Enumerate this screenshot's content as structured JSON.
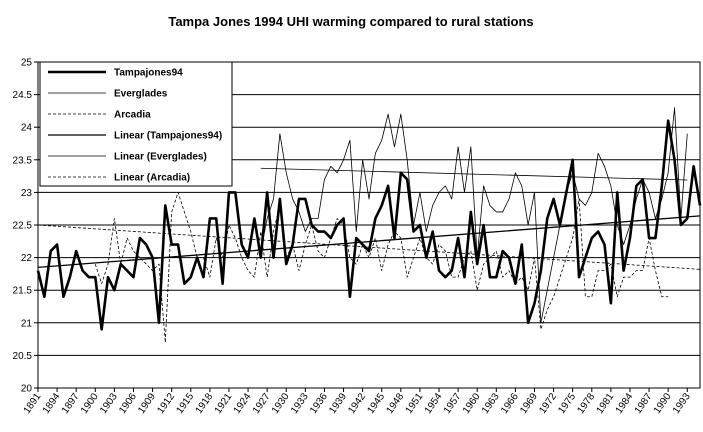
{
  "chart_data": {
    "type": "line",
    "title": "Tampa Jones 1994  UHI warming compared to rural stations",
    "xlabel": "",
    "ylabel": "",
    "ylim": [
      20,
      25
    ],
    "yticks": [
      "20",
      "20.5",
      "21",
      "21.5",
      "22",
      "22.5",
      "23",
      "23.5",
      "24",
      "24.5",
      "25"
    ],
    "xlim": [
      1891,
      1995
    ],
    "xticks": [
      "1891",
      "1894",
      "1897",
      "1900",
      "1903",
      "1906",
      "1909",
      "1912",
      "1915",
      "1918",
      "1921",
      "1924",
      "1927",
      "1930",
      "1933",
      "1936",
      "1939",
      "1942",
      "1945",
      "1948",
      "1951",
      "1954",
      "1957",
      "1960",
      "1963",
      "1966",
      "1969",
      "1972",
      "1975",
      "1978",
      "1981",
      "1984",
      "1987",
      "1990",
      "1993"
    ],
    "grid": "horizontal",
    "legend_position": "top-left",
    "legend": [
      "Tampajones94",
      "Everglades",
      "Arcadia",
      "Linear (Tampajones94)",
      "Linear (Everglades)",
      "Linear (Arcadia)"
    ],
    "series": [
      {
        "name": "Tampajones94",
        "style": "thick-solid",
        "x": [
          1891,
          1892,
          1893,
          1894,
          1895,
          1896,
          1897,
          1898,
          1899,
          1900,
          1901,
          1902,
          1903,
          1904,
          1905,
          1906,
          1907,
          1908,
          1909,
          1910,
          1911,
          1912,
          1913,
          1914,
          1915,
          1916,
          1917,
          1918,
          1919,
          1920,
          1921,
          1922,
          1923,
          1924,
          1925,
          1926,
          1927,
          1928,
          1929,
          1930,
          1931,
          1932,
          1933,
          1934,
          1935,
          1936,
          1937,
          1938,
          1939,
          1940,
          1941,
          1942,
          1943,
          1944,
          1945,
          1946,
          1947,
          1948,
          1949,
          1950,
          1951,
          1952,
          1953,
          1954,
          1955,
          1956,
          1957,
          1958,
          1959,
          1960,
          1961,
          1962,
          1963,
          1964,
          1965,
          1966,
          1967,
          1968,
          1969,
          1970,
          1971,
          1972,
          1973,
          1974,
          1975,
          1976,
          1977,
          1978,
          1979,
          1980,
          1981,
          1982,
          1983,
          1984,
          1985,
          1986,
          1987,
          1988,
          1989,
          1990,
          1991,
          1992,
          1993,
          1994,
          1995
        ],
        "values": [
          21.8,
          21.4,
          22.1,
          22.2,
          21.4,
          21.7,
          22.1,
          21.8,
          21.7,
          21.7,
          20.9,
          21.7,
          21.5,
          21.9,
          21.8,
          21.7,
          22.3,
          22.2,
          22.0,
          21.0,
          22.8,
          22.2,
          22.2,
          21.6,
          21.7,
          22.0,
          21.7,
          22.6,
          22.6,
          21.6,
          23.0,
          23.0,
          22.2,
          22.0,
          22.6,
          22.0,
          23.0,
          22.0,
          22.9,
          21.9,
          22.2,
          22.9,
          22.9,
          22.5,
          22.4,
          22.4,
          22.3,
          22.5,
          22.6,
          21.4,
          22.3,
          22.2,
          22.1,
          22.6,
          22.8,
          23.1,
          22.3,
          23.3,
          23.2,
          22.4,
          22.5,
          22.0,
          22.4,
          21.8,
          21.7,
          21.8,
          22.3,
          21.7,
          22.7,
          21.9,
          22.5,
          21.7,
          21.7,
          22.1,
          22.0,
          21.6,
          22.2,
          21.0,
          21.3,
          21.8,
          22.6,
          22.9,
          22.5,
          23.0,
          23.5,
          21.7,
          22.0,
          22.3,
          22.4,
          22.2,
          21.3,
          23.0,
          21.8,
          22.3,
          23.1,
          23.2,
          22.3,
          22.3,
          23.1,
          24.1,
          23.5,
          22.5,
          22.6,
          23.4,
          22.8
        ]
      },
      {
        "name": "Everglades",
        "style": "thin-solid",
        "x": [
          1926,
          1927,
          1928,
          1929,
          1930,
          1931,
          1932,
          1933,
          1934,
          1935,
          1936,
          1937,
          1938,
          1939,
          1940,
          1941,
          1942,
          1943,
          1944,
          1945,
          1946,
          1947,
          1948,
          1949,
          1950,
          1951,
          1952,
          1953,
          1954,
          1955,
          1956,
          1957,
          1958,
          1959,
          1960,
          1961,
          1962,
          1963,
          1964,
          1965,
          1966,
          1967,
          1968,
          1969,
          1970,
          1971,
          1972,
          1973,
          1974,
          1975,
          1976,
          1977,
          1978,
          1979,
          1980,
          1981,
          1982,
          1983,
          1984,
          1985,
          1986,
          1987,
          1988,
          1989,
          1990,
          1991,
          1992,
          1993
        ],
        "values": [
          22.1,
          22.6,
          22.9,
          23.9,
          23.3,
          22.9,
          22.7,
          22.4,
          22.6,
          22.6,
          23.2,
          23.4,
          23.3,
          23.5,
          23.8,
          22.4,
          23.5,
          22.9,
          23.6,
          23.8,
          24.2,
          23.7,
          24.2,
          23.5,
          22.5,
          23.0,
          22.4,
          22.8,
          23.0,
          23.1,
          22.9,
          23.7,
          23.0,
          23.7,
          22.0,
          23.1,
          22.8,
          22.7,
          22.7,
          22.9,
          23.3,
          23.1,
          22.5,
          23.0,
          21.0,
          21.5,
          22.0,
          22.5,
          23.0,
          23.3,
          22.9,
          22.8,
          23.0,
          23.6,
          23.4,
          23.1,
          22.5,
          22.2,
          22.5,
          22.9,
          23.2,
          23.0,
          22.6,
          22.9,
          23.3,
          24.3,
          22.6,
          23.9
        ]
      },
      {
        "name": "Arcadia",
        "style": "dashed",
        "x": [
          1900,
          1901,
          1902,
          1903,
          1904,
          1905,
          1906,
          1907,
          1908,
          1909,
          1910,
          1911,
          1912,
          1913,
          1914,
          1915,
          1916,
          1917,
          1918,
          1919,
          1920,
          1921,
          1922,
          1923,
          1924,
          1925,
          1926,
          1927,
          1928,
          1929,
          1930,
          1931,
          1932,
          1933,
          1934,
          1935,
          1936,
          1937,
          1938,
          1939,
          1940,
          1941,
          1942,
          1943,
          1944,
          1945,
          1946,
          1947,
          1948,
          1949,
          1950,
          1951,
          1952,
          1953,
          1954,
          1955,
          1956,
          1957,
          1958,
          1959,
          1960,
          1961,
          1962,
          1963,
          1964,
          1965,
          1966,
          1967,
          1968,
          1969,
          1970,
          1971,
          1972,
          1973,
          1974,
          1975,
          1976,
          1977,
          1978,
          1979,
          1980,
          1981,
          1982,
          1983,
          1984,
          1985,
          1986,
          1987,
          1988,
          1989,
          1990
        ],
        "values": [
          21.9,
          21.6,
          21.9,
          22.6,
          21.9,
          22.3,
          22.1,
          22.0,
          21.9,
          21.8,
          21.9,
          20.7,
          22.7,
          23.0,
          22.7,
          22.4,
          22.0,
          22.0,
          21.7,
          22.3,
          22.0,
          22.5,
          22.3,
          22.0,
          21.8,
          21.7,
          22.4,
          21.7,
          22.4,
          22.8,
          22.0,
          22.2,
          21.8,
          22.2,
          22.5,
          22.1,
          22.0,
          22.3,
          22.6,
          22.5,
          22.0,
          21.9,
          22.2,
          22.0,
          22.3,
          21.8,
          22.2,
          22.4,
          22.3,
          21.7,
          22.0,
          22.3,
          22.0,
          21.9,
          22.2,
          22.1,
          21.7,
          21.7,
          22.0,
          22.1,
          21.5,
          21.9,
          22.0,
          22.1,
          21.7,
          21.8,
          21.6,
          21.7,
          21.5,
          22.0,
          20.9,
          21.2,
          21.4,
          21.7,
          22.0,
          22.3,
          22.9,
          21.4,
          21.4,
          21.8,
          21.8,
          21.9,
          21.4,
          21.7,
          21.7,
          21.8,
          21.8,
          22.3,
          21.8,
          21.4,
          21.4
        ]
      },
      {
        "name": "Linear (Tampajones94)",
        "style": "trend-solid",
        "x": [
          1891,
          1995
        ],
        "values": [
          21.85,
          22.64
        ]
      },
      {
        "name": "Linear (Everglades)",
        "style": "trend-thin",
        "x": [
          1926,
          1993
        ],
        "values": [
          23.37,
          23.19
        ]
      },
      {
        "name": "Linear (Arcadia)",
        "style": "trend-dashed",
        "x": [
          1891,
          1995
        ],
        "values": [
          22.5,
          21.82
        ]
      }
    ]
  }
}
